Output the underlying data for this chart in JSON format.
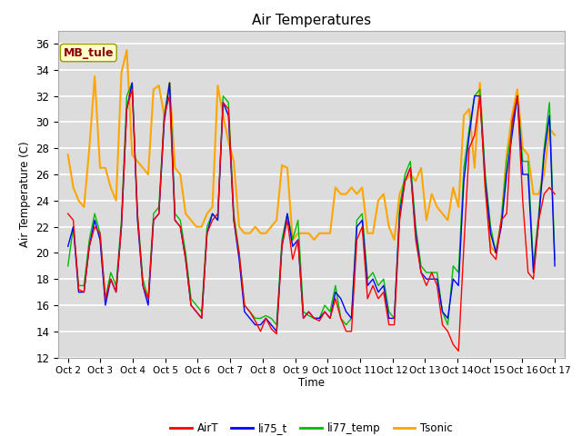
{
  "title": "Air Temperatures",
  "ylabel": "Air Temperature (C)",
  "xlabel": "Time",
  "annotation": "MB_tule",
  "ylim": [
    12,
    37
  ],
  "yticks": [
    12,
    14,
    16,
    18,
    20,
    22,
    24,
    26,
    28,
    30,
    32,
    34,
    36
  ],
  "xtick_labels": [
    "Oct 2",
    "Oct 3",
    "Oct 4",
    "Oct 5",
    "Oct 6",
    "Oct 7",
    "Oct 8",
    "Oct 9",
    "Oct 10",
    "Oct 11",
    "Oct 12",
    "Oct 13",
    "Oct 14",
    "Oct 15",
    "Oct 16",
    "Oct 17"
  ],
  "legend": [
    "AirT",
    "li75_t",
    "li77_temp",
    "Tsonic"
  ],
  "colors": {
    "AirT": "#ff0000",
    "li75_t": "#0000ff",
    "li77_temp": "#00bb00",
    "Tsonic": "#ffa500"
  },
  "plot_bg_color": "#dcdcdc",
  "title_fontsize": 11,
  "AirT": [
    23.0,
    22.5,
    17.2,
    17.0,
    20.5,
    22.0,
    21.5,
    16.5,
    18.0,
    17.0,
    22.0,
    31.0,
    32.5,
    23.0,
    17.5,
    16.5,
    22.5,
    23.0,
    30.5,
    32.0,
    22.5,
    22.0,
    19.5,
    16.0,
    15.5,
    15.0,
    21.5,
    22.5,
    23.0,
    31.5,
    31.0,
    22.5,
    20.0,
    16.0,
    15.5,
    14.8,
    14.0,
    15.0,
    14.2,
    13.8,
    20.5,
    22.5,
    19.5,
    21.0,
    15.0,
    15.5,
    15.0,
    14.8,
    15.5,
    15.0,
    16.5,
    15.0,
    14.0,
    14.0,
    21.0,
    22.0,
    16.5,
    17.5,
    16.5,
    17.0,
    14.5,
    14.5,
    22.5,
    25.5,
    26.5,
    21.0,
    18.5,
    17.5,
    18.5,
    17.5,
    14.5,
    14.0,
    13.0,
    12.5,
    20.5,
    28.0,
    29.0,
    32.0,
    25.0,
    20.0,
    19.5,
    22.5,
    23.0,
    30.0,
    32.0,
    24.0,
    18.5,
    18.0,
    22.5,
    24.5,
    25.0,
    24.5
  ],
  "li75_t": [
    20.5,
    22.0,
    17.0,
    17.0,
    20.5,
    22.5,
    21.0,
    16.0,
    18.0,
    17.0,
    22.0,
    31.0,
    33.0,
    22.5,
    17.5,
    16.0,
    22.5,
    23.0,
    30.0,
    33.0,
    22.5,
    22.0,
    19.5,
    16.0,
    15.5,
    15.0,
    21.5,
    23.0,
    22.5,
    31.5,
    30.5,
    22.5,
    19.5,
    15.5,
    15.0,
    14.5,
    14.5,
    15.0,
    14.5,
    14.0,
    20.5,
    23.0,
    20.5,
    21.0,
    15.0,
    15.5,
    15.0,
    15.0,
    15.5,
    15.0,
    17.0,
    16.5,
    15.5,
    15.0,
    22.0,
    22.5,
    17.5,
    18.0,
    17.0,
    17.5,
    15.0,
    15.0,
    23.0,
    25.5,
    26.5,
    21.5,
    18.5,
    18.0,
    18.0,
    18.0,
    15.5,
    15.0,
    18.0,
    17.5,
    25.5,
    29.0,
    32.0,
    32.0,
    25.5,
    21.5,
    20.0,
    22.0,
    26.0,
    29.0,
    32.0,
    26.0,
    26.0,
    18.5,
    22.5,
    27.5,
    30.5,
    19.0
  ],
  "li77_temp": [
    19.0,
    22.0,
    17.5,
    17.5,
    21.0,
    23.0,
    21.5,
    16.5,
    18.5,
    17.5,
    22.5,
    32.0,
    33.0,
    23.0,
    18.0,
    16.5,
    23.0,
    23.5,
    30.5,
    33.0,
    23.0,
    22.5,
    20.0,
    16.5,
    16.0,
    15.5,
    22.0,
    23.0,
    22.5,
    32.0,
    31.5,
    23.0,
    20.0,
    16.0,
    15.5,
    15.0,
    15.0,
    15.2,
    15.0,
    14.5,
    21.0,
    23.0,
    21.0,
    22.5,
    15.5,
    15.2,
    15.0,
    15.0,
    16.0,
    15.5,
    17.5,
    15.0,
    14.5,
    15.0,
    22.5,
    23.0,
    18.0,
    18.5,
    17.5,
    18.0,
    15.5,
    15.0,
    23.5,
    26.0,
    27.0,
    22.0,
    19.0,
    18.5,
    18.5,
    18.5,
    15.5,
    14.5,
    19.0,
    18.5,
    26.5,
    29.5,
    32.0,
    32.5,
    26.0,
    22.0,
    20.0,
    22.5,
    27.0,
    29.5,
    32.0,
    27.0,
    27.0,
    19.0,
    23.0,
    28.0,
    31.5,
    19.5
  ],
  "Tsonic": [
    27.5,
    25.0,
    24.0,
    23.5,
    28.0,
    33.5,
    26.5,
    26.5,
    25.0,
    24.0,
    33.8,
    35.5,
    27.5,
    27.0,
    26.5,
    26.0,
    32.5,
    32.8,
    30.5,
    33.0,
    26.5,
    26.0,
    23.0,
    22.5,
    22.0,
    22.0,
    23.0,
    23.5,
    32.8,
    30.5,
    28.5,
    27.0,
    22.0,
    21.5,
    21.5,
    22.0,
    21.5,
    21.5,
    22.0,
    22.5,
    26.7,
    26.5,
    21.0,
    21.5,
    21.5,
    21.5,
    21.0,
    21.5,
    21.5,
    21.5,
    25.0,
    24.5,
    24.5,
    25.0,
    24.5,
    25.0,
    21.5,
    21.5,
    24.0,
    24.5,
    22.0,
    21.0,
    24.5,
    25.5,
    26.0,
    25.5,
    26.5,
    22.5,
    24.5,
    23.5,
    23.0,
    22.5,
    25.0,
    23.5,
    30.5,
    31.0,
    26.5,
    33.0,
    25.0,
    20.5,
    20.0,
    22.5,
    27.5,
    30.5,
    32.5,
    28.0,
    27.5,
    24.5,
    24.5,
    26.0,
    29.5,
    29.0
  ]
}
